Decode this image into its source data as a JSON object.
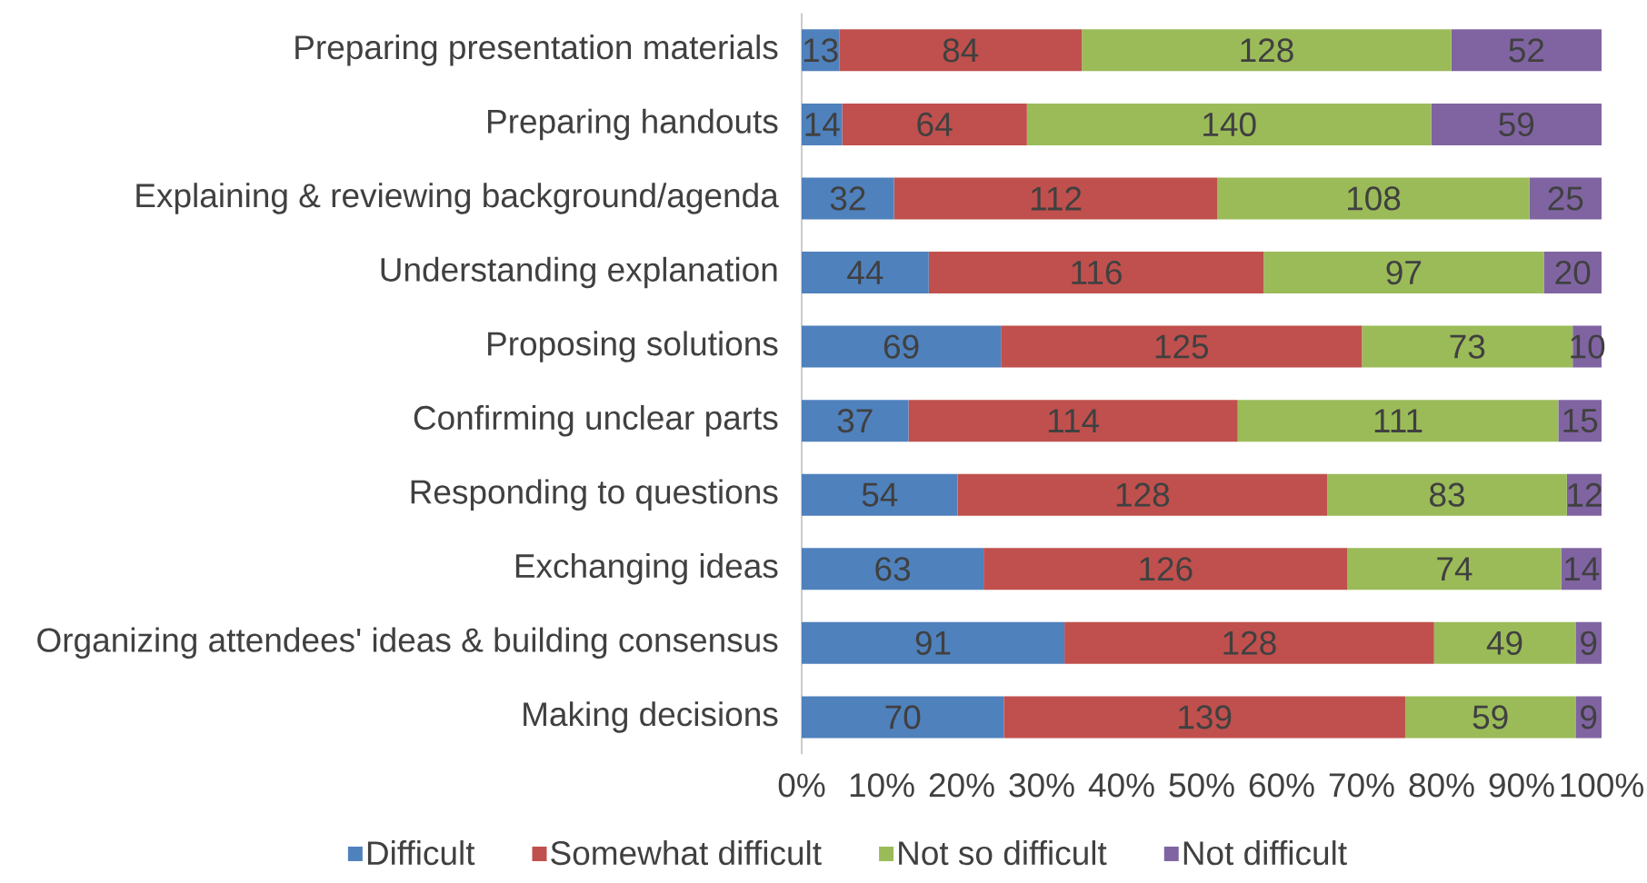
{
  "chart_data": {
    "type": "bar",
    "orientation": "horizontal",
    "stacked": true,
    "legend": "bottom",
    "data_labels": true,
    "categories": [
      "Preparing presentation materials",
      "Preparing handouts",
      "Explaining & reviewing background/agenda",
      "Understanding explanation",
      "Proposing solutions",
      "Confirming unclear parts",
      "Responding to questions",
      "Exchanging ideas",
      "Organizing attendees' ideas & building consensus",
      "Making decisions"
    ],
    "xlim": [
      0,
      277
    ],
    "x2lim": [
      0,
      100
    ],
    "x2ticks": [
      {
        "value": 0,
        "label": "0%"
      },
      {
        "value": 10,
        "label": "10%"
      },
      {
        "value": 20,
        "label": "20%"
      },
      {
        "value": 30,
        "label": "30%"
      },
      {
        "value": 40,
        "label": "40%"
      },
      {
        "value": 50,
        "label": "50%"
      },
      {
        "value": 60,
        "label": "60%"
      },
      {
        "value": 70,
        "label": "70%"
      },
      {
        "value": 80,
        "label": "80%"
      },
      {
        "value": 90,
        "label": "90%"
      },
      {
        "value": 100,
        "label": "100%"
      }
    ],
    "series": [
      {
        "name": "Difficult",
        "color": "#4f81bd",
        "values": [
          13,
          14,
          32,
          44,
          69,
          37,
          54,
          63,
          91,
          70
        ]
      },
      {
        "name": "Somewhat difficult",
        "color": "#c0504d",
        "values": [
          84,
          64,
          112,
          116,
          125,
          114,
          128,
          126,
          128,
          139
        ]
      },
      {
        "name": "Not so difficult",
        "color": "#9bbb59",
        "values": [
          128,
          140,
          108,
          97,
          73,
          111,
          83,
          74,
          49,
          59
        ]
      },
      {
        "name": "Not difficult",
        "color": "#8064a2",
        "values": [
          52,
          59,
          25,
          20,
          10,
          15,
          12,
          14,
          9,
          9
        ]
      }
    ]
  }
}
